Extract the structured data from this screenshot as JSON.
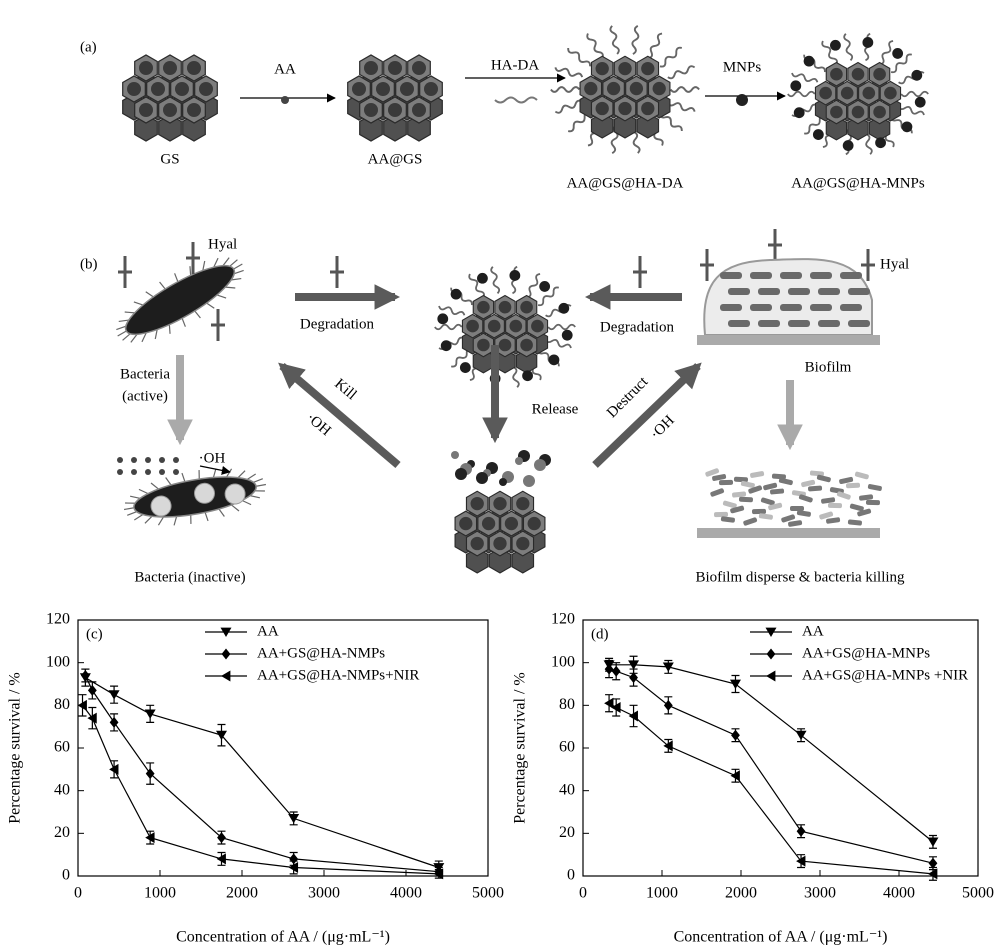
{
  "panel_a": {
    "label": "(a)",
    "reagents": [
      "AA",
      "HA-DA",
      "MNPs"
    ],
    "products": [
      "GS",
      "AA@GS",
      "AA@GS@HA-DA",
      "AA@GS@HA-MNPs"
    ]
  },
  "panel_b": {
    "label": "(b)",
    "hyal_left": "Hyal",
    "hyal_right": "Hyal",
    "degradation_left": "Degradation",
    "degradation_right": "Degradation",
    "bacteria_active": [
      "Bacteria",
      "(active)"
    ],
    "oh_bacteria": "·OH",
    "kill": "Kill",
    "oh_kill": "·OH",
    "release": "Release",
    "destruct": "Destruct",
    "oh_destruct": "·OH",
    "biofilm": "Biofilm",
    "bacteria_inactive": "Bacteria (inactive)",
    "biofilm_disperse": "Biofilm disperse & bacteria killing"
  },
  "chart_data": [
    {
      "type": "line",
      "panel": "(c)",
      "xlabel": "Concentration of AA / (μg·mL⁻¹)",
      "ylabel": "Percentage survival / %",
      "xlim": [
        0,
        5000
      ],
      "ylim": [
        0,
        120
      ],
      "xticks": [
        0,
        1000,
        2000,
        3000,
        4000,
        5000
      ],
      "yticks": [
        0,
        20,
        40,
        60,
        80,
        100,
        120
      ],
      "legend": "upper right",
      "series": [
        {
          "name": "AA",
          "color": "#000000",
          "marker": "triangle-down",
          "x": [
            90,
            440,
            880,
            1750,
            2630,
            4400
          ],
          "values": [
            93,
            85,
            76,
            66,
            27,
            4
          ],
          "errors": [
            4,
            4,
            4,
            5,
            3,
            3
          ]
        },
        {
          "name": "AA+GS@HA-NMPs",
          "color": "#000000",
          "marker": "diamond",
          "x": [
            90,
            175,
            440,
            880,
            1750,
            2630,
            4400
          ],
          "values": [
            94,
            87,
            72,
            48,
            18,
            8,
            2
          ],
          "errors": [
            3,
            4,
            4,
            5,
            3,
            3,
            2
          ]
        },
        {
          "name": "AA+GS@HA-NMPs+NIR",
          "color": "#000000",
          "marker": "triangle-left",
          "x": [
            55,
            175,
            440,
            880,
            1750,
            2630,
            4400
          ],
          "values": [
            80,
            74,
            50,
            18,
            8,
            4,
            1
          ],
          "errors": [
            5,
            5,
            4,
            3,
            3,
            3,
            2
          ]
        }
      ]
    },
    {
      "type": "line",
      "panel": "(d)",
      "xlabel": "Concentration of AA / (μg·mL⁻¹)",
      "ylabel": "Percentage survival / %",
      "xlim": [
        0,
        5000
      ],
      "ylim": [
        0,
        120
      ],
      "xticks": [
        0,
        1000,
        2000,
        3000,
        4000,
        5000
      ],
      "yticks": [
        0,
        20,
        40,
        60,
        80,
        100,
        120
      ],
      "legend": "upper right",
      "series": [
        {
          "name": "AA",
          "color": "#000000",
          "marker": "triangle-down",
          "x": [
            330,
            640,
            1080,
            1930,
            2760,
            4430
          ],
          "values": [
            99,
            99,
            98,
            90,
            66,
            16
          ],
          "errors": [
            3,
            4,
            3,
            4,
            3,
            3
          ]
        },
        {
          "name": "AA+GS@HA-MNPs",
          "color": "#000000",
          "marker": "diamond",
          "x": [
            330,
            420,
            640,
            1080,
            1930,
            2760,
            4430
          ],
          "values": [
            97,
            96,
            93,
            80,
            66,
            21,
            6
          ],
          "errors": [
            4,
            4,
            4,
            4,
            3,
            3,
            3
          ]
        },
        {
          "name": "AA+GS@HA-MNPs +NIR",
          "color": "#000000",
          "marker": "triangle-left",
          "x": [
            330,
            420,
            640,
            1080,
            1930,
            2760,
            4430
          ],
          "values": [
            81,
            79,
            75,
            61,
            47,
            7,
            1
          ],
          "errors": [
            4,
            4,
            5,
            3,
            3,
            3,
            3
          ]
        }
      ]
    }
  ]
}
